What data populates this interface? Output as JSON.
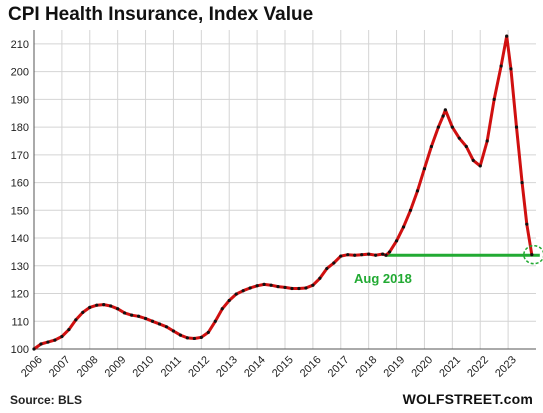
{
  "chart_data": {
    "type": "line",
    "title": "CPI Health Insurance, Index Value",
    "source": "Source: BLS",
    "brand": "WOLFSTREET.com",
    "ylim": [
      100,
      215
    ],
    "xlim": [
      2006.0,
      2024.0
    ],
    "yticks": [
      100,
      110,
      120,
      130,
      140,
      150,
      160,
      170,
      180,
      190,
      200,
      210
    ],
    "xticks": [
      "2006",
      "2007",
      "2008",
      "2009",
      "2010",
      "2011",
      "2012",
      "2013",
      "2014",
      "2015",
      "2016",
      "2017",
      "2018",
      "2019",
      "2020",
      "2021",
      "2022",
      "2023"
    ],
    "grid": true,
    "colors": {
      "line": "#d01010",
      "markers": "#111111",
      "reference": "#22aa33",
      "annotation": "#22aa33"
    },
    "annotation": {
      "label": "Aug 2018",
      "x": 2018.62,
      "y": 133.8,
      "end_x": 2023.85
    },
    "series": [
      {
        "values": [
          [
            2006.0,
            100.0
          ],
          [
            2006.25,
            101.8
          ],
          [
            2006.5,
            102.5
          ],
          [
            2006.75,
            103.2
          ],
          [
            2007.0,
            104.5
          ],
          [
            2007.25,
            107.0
          ],
          [
            2007.5,
            110.5
          ],
          [
            2007.75,
            113.2
          ],
          [
            2008.0,
            115.0
          ],
          [
            2008.25,
            115.8
          ],
          [
            2008.5,
            116.0
          ],
          [
            2008.75,
            115.5
          ],
          [
            2009.0,
            114.5
          ],
          [
            2009.25,
            113.0
          ],
          [
            2009.5,
            112.2
          ],
          [
            2009.75,
            111.8
          ],
          [
            2010.0,
            111.0
          ],
          [
            2010.25,
            110.0
          ],
          [
            2010.5,
            109.0
          ],
          [
            2010.75,
            108.0
          ],
          [
            2011.0,
            106.5
          ],
          [
            2011.25,
            105.0
          ],
          [
            2011.5,
            104.0
          ],
          [
            2011.75,
            103.8
          ],
          [
            2012.0,
            104.2
          ],
          [
            2012.25,
            106.0
          ],
          [
            2012.5,
            110.0
          ],
          [
            2012.75,
            114.5
          ],
          [
            2013.0,
            117.5
          ],
          [
            2013.25,
            119.8
          ],
          [
            2013.5,
            121.0
          ],
          [
            2013.75,
            122.0
          ],
          [
            2014.0,
            122.8
          ],
          [
            2014.25,
            123.3
          ],
          [
            2014.5,
            123.0
          ],
          [
            2014.75,
            122.5
          ],
          [
            2015.0,
            122.2
          ],
          [
            2015.25,
            121.8
          ],
          [
            2015.5,
            121.8
          ],
          [
            2015.75,
            122.0
          ],
          [
            2016.0,
            123.0
          ],
          [
            2016.25,
            125.5
          ],
          [
            2016.5,
            129.0
          ],
          [
            2016.75,
            131.0
          ],
          [
            2017.0,
            133.5
          ],
          [
            2017.25,
            134.0
          ],
          [
            2017.5,
            133.8
          ],
          [
            2017.75,
            134.0
          ],
          [
            2018.0,
            134.2
          ],
          [
            2018.25,
            133.8
          ],
          [
            2018.5,
            134.2
          ],
          [
            2018.62,
            133.8
          ],
          [
            2018.75,
            135.0
          ],
          [
            2019.0,
            139.0
          ],
          [
            2019.25,
            144.0
          ],
          [
            2019.5,
            150.0
          ],
          [
            2019.75,
            157.0
          ],
          [
            2020.0,
            165.0
          ],
          [
            2020.25,
            173.0
          ],
          [
            2020.5,
            180.0
          ],
          [
            2020.67,
            184.0
          ],
          [
            2020.75,
            186.2
          ],
          [
            2021.0,
            180.0
          ],
          [
            2021.25,
            176.0
          ],
          [
            2021.5,
            173.0
          ],
          [
            2021.75,
            168.0
          ],
          [
            2022.0,
            166.0
          ],
          [
            2022.25,
            175.0
          ],
          [
            2022.5,
            190.0
          ],
          [
            2022.75,
            202.0
          ],
          [
            2022.95,
            212.8
          ],
          [
            2023.1,
            201.0
          ],
          [
            2023.3,
            180.0
          ],
          [
            2023.5,
            160.0
          ],
          [
            2023.67,
            145.0
          ],
          [
            2023.85,
            134.0
          ]
        ]
      }
    ]
  }
}
